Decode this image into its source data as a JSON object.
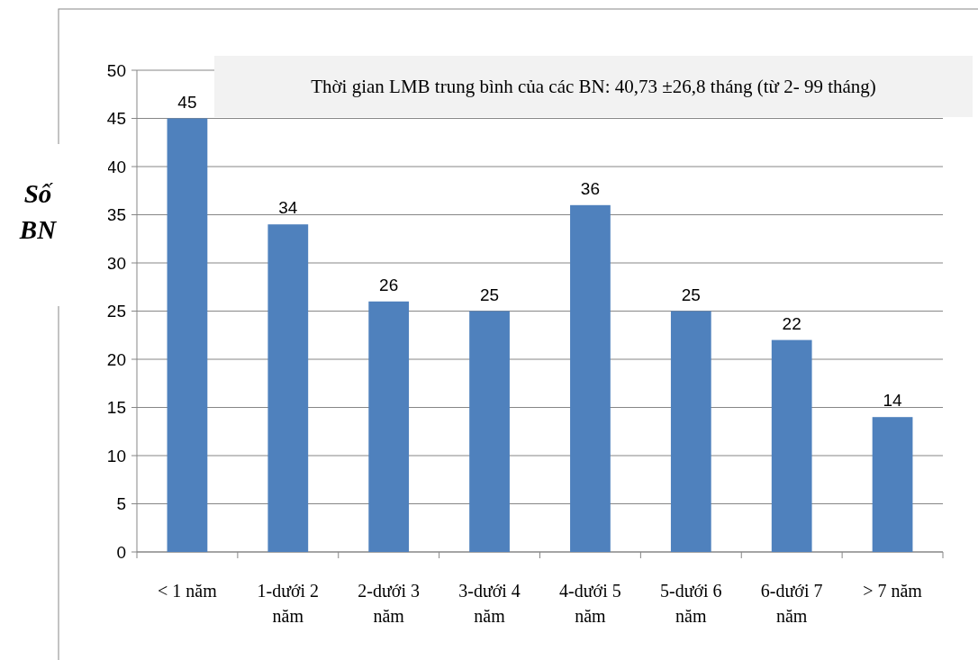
{
  "chart_data": {
    "type": "bar",
    "ylabel": "Số BN",
    "categories": [
      "< 1 năm",
      "1-dưới 2 năm",
      "2-dưới 3 năm",
      "3-dưới 4 năm",
      "4-dưới 5 năm",
      "5-dưới 6 năm",
      "6-dưới 7 năm",
      "> 7 năm"
    ],
    "values": [
      45,
      34,
      26,
      25,
      36,
      25,
      22,
      14
    ],
    "color": "#4f81bd",
    "ylim": [
      0,
      50
    ],
    "yticks": [
      0,
      5,
      10,
      15,
      20,
      25,
      30,
      35,
      40,
      45,
      50
    ],
    "grid": "y",
    "data_labels": true,
    "annotations": [
      "Thời gian LMB trung bình của các BN: 40,73 ±26,8 tháng  (từ 2- 99 tháng)"
    ]
  }
}
